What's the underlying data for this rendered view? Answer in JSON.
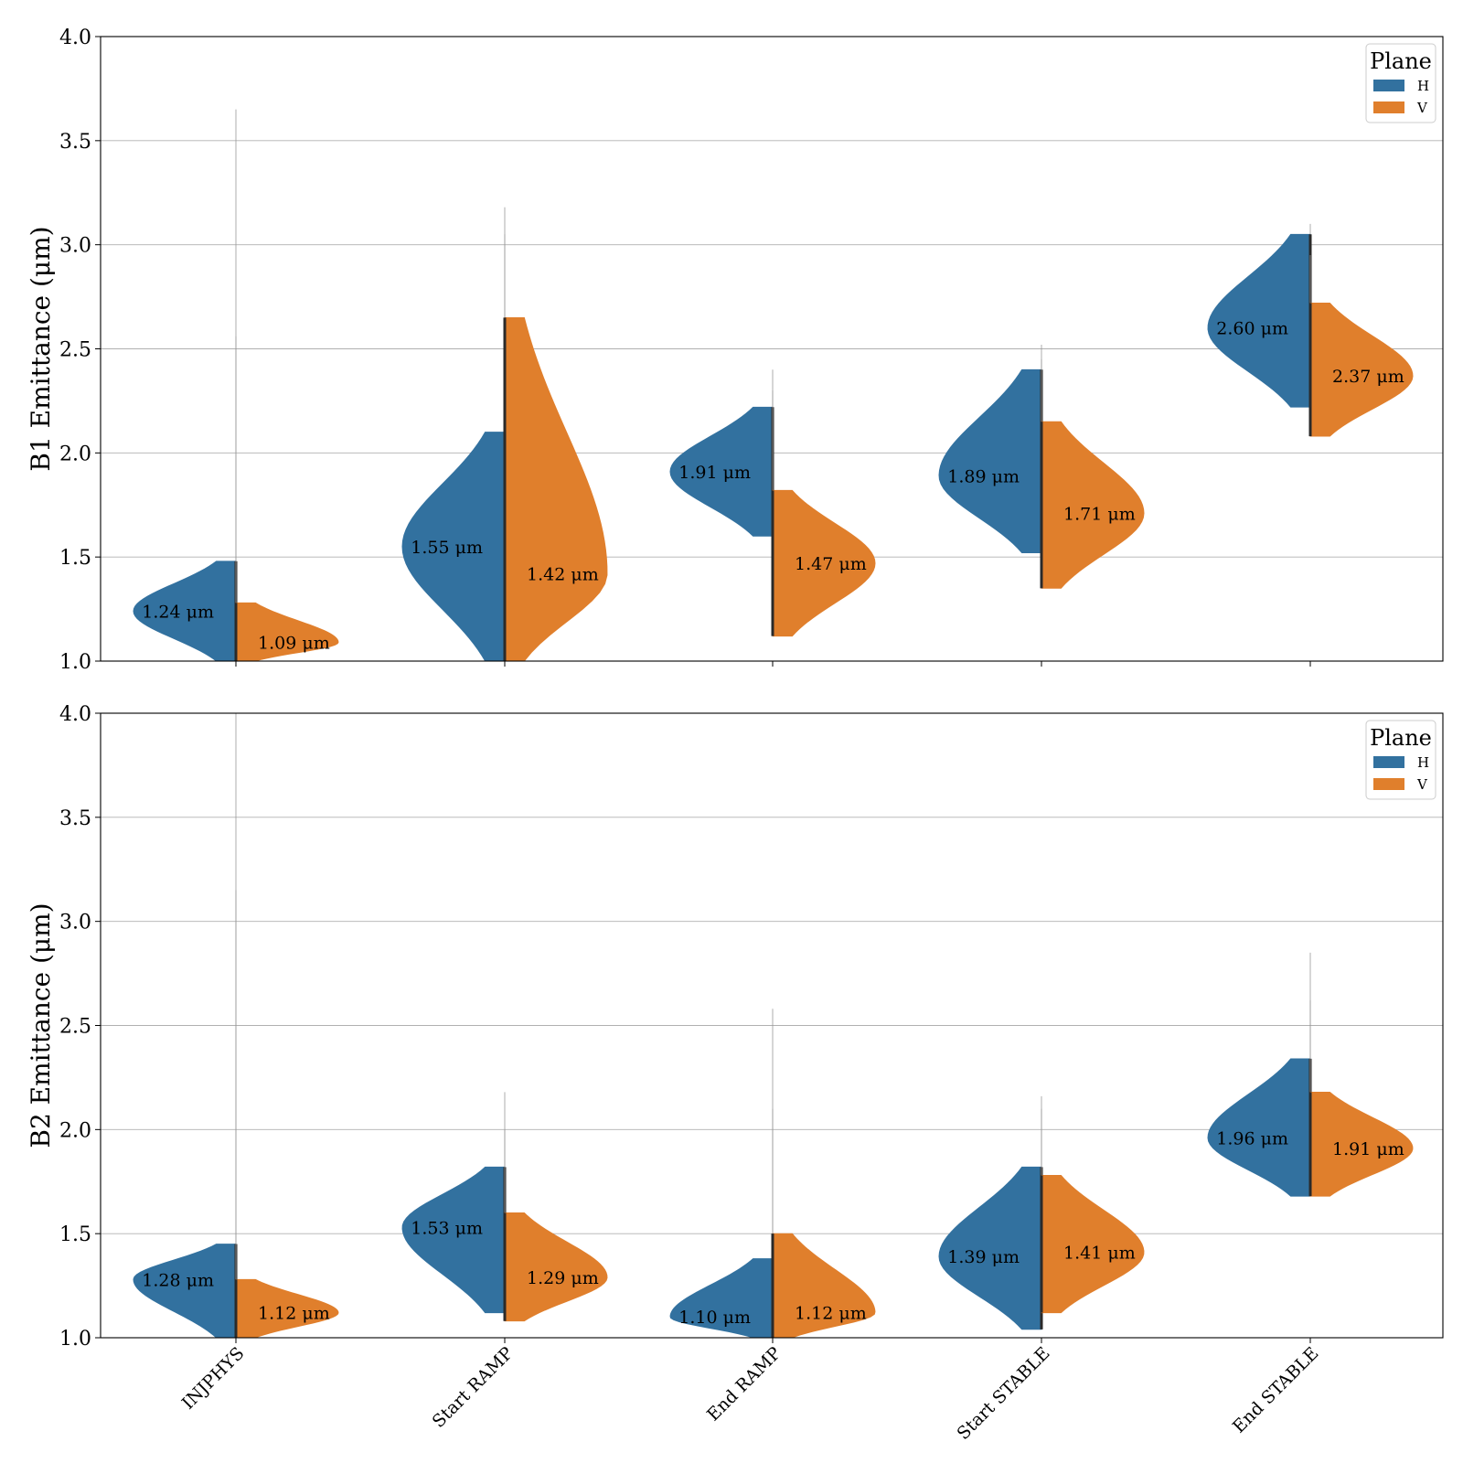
{
  "colors": {
    "H": "#32719f",
    "V": "#e07f2c"
  },
  "chart_data": [
    {
      "type": "violin",
      "ylabel": "B1 Emittance (μm)",
      "ylim": [
        1.0,
        4.0
      ],
      "yticks": [
        "1.0",
        "1.5",
        "2.0",
        "2.5",
        "3.0",
        "3.5",
        "4.0"
      ],
      "grid": true,
      "legend": {
        "title": "Plane",
        "entries": [
          "H",
          "V"
        ],
        "placement": "top-right"
      },
      "categories": [
        "INJPHYS",
        "Start RAMP",
        "End RAMP",
        "Start STABLE",
        "End STABLE"
      ],
      "series": [
        {
          "name": "H",
          "medians": [
            1.24,
            1.55,
            1.91,
            1.89,
            2.6
          ],
          "labels": [
            "1.24 μm",
            "1.55 μm",
            "1.91 μm",
            "1.89 μm",
            "2.60 μm"
          ],
          "ranges": [
            [
              1.0,
              1.48
            ],
            [
              1.0,
              2.1
            ],
            [
              1.6,
              2.22
            ],
            [
              1.52,
              2.4
            ],
            [
              2.22,
              3.05
            ]
          ],
          "max_points": [
            3.65,
            3.18,
            2.4,
            2.52,
            3.1
          ]
        },
        {
          "name": "V",
          "medians": [
            1.09,
            1.42,
            1.47,
            1.71,
            2.37
          ],
          "labels": [
            "1.09 μm",
            "1.42 μm",
            "1.47 μm",
            "1.71 μm",
            "2.37 μm"
          ],
          "ranges": [
            [
              1.0,
              1.28
            ],
            [
              1.0,
              2.65
            ],
            [
              1.12,
              1.82
            ],
            [
              1.35,
              2.15
            ],
            [
              2.08,
              2.72
            ]
          ],
          "max_points": [
            2.56,
            3.05,
            2.3,
            2.45,
            2.95
          ]
        }
      ]
    },
    {
      "type": "violin",
      "ylabel": "B2 Emittance (μm)",
      "ylim": [
        1.0,
        4.0
      ],
      "yticks": [
        "1.0",
        "1.5",
        "2.0",
        "2.5",
        "3.0",
        "3.5",
        "4.0"
      ],
      "grid": true,
      "legend": {
        "title": "Plane",
        "entries": [
          "H",
          "V"
        ],
        "placement": "top-right"
      },
      "categories": [
        "INJPHYS",
        "Start RAMP",
        "End RAMP",
        "Start STABLE",
        "End STABLE"
      ],
      "series": [
        {
          "name": "H",
          "medians": [
            1.28,
            1.53,
            1.1,
            1.39,
            1.96
          ],
          "labels": [
            "1.28 μm",
            "1.53 μm",
            "1.10 μm",
            "1.39 μm",
            "1.96 μm"
          ],
          "ranges": [
            [
              1.0,
              1.45
            ],
            [
              1.12,
              1.82
            ],
            [
              1.0,
              1.38
            ],
            [
              1.04,
              1.82
            ],
            [
              1.68,
              2.34
            ]
          ],
          "max_points": [
            4.0,
            2.18,
            2.1,
            2.16,
            2.85
          ]
        },
        {
          "name": "V",
          "medians": [
            1.12,
            1.29,
            1.12,
            1.41,
            1.91
          ],
          "labels": [
            "1.12 μm",
            "1.29 μm",
            "1.12 μm",
            "1.41 μm",
            "1.91 μm"
          ],
          "ranges": [
            [
              1.0,
              1.28
            ],
            [
              1.08,
              1.6
            ],
            [
              1.0,
              1.5
            ],
            [
              1.12,
              1.78
            ],
            [
              1.68,
              2.18
            ]
          ],
          "max_points": [
            3.15,
            2.0,
            2.58,
            2.1,
            2.62
          ]
        }
      ]
    }
  ]
}
